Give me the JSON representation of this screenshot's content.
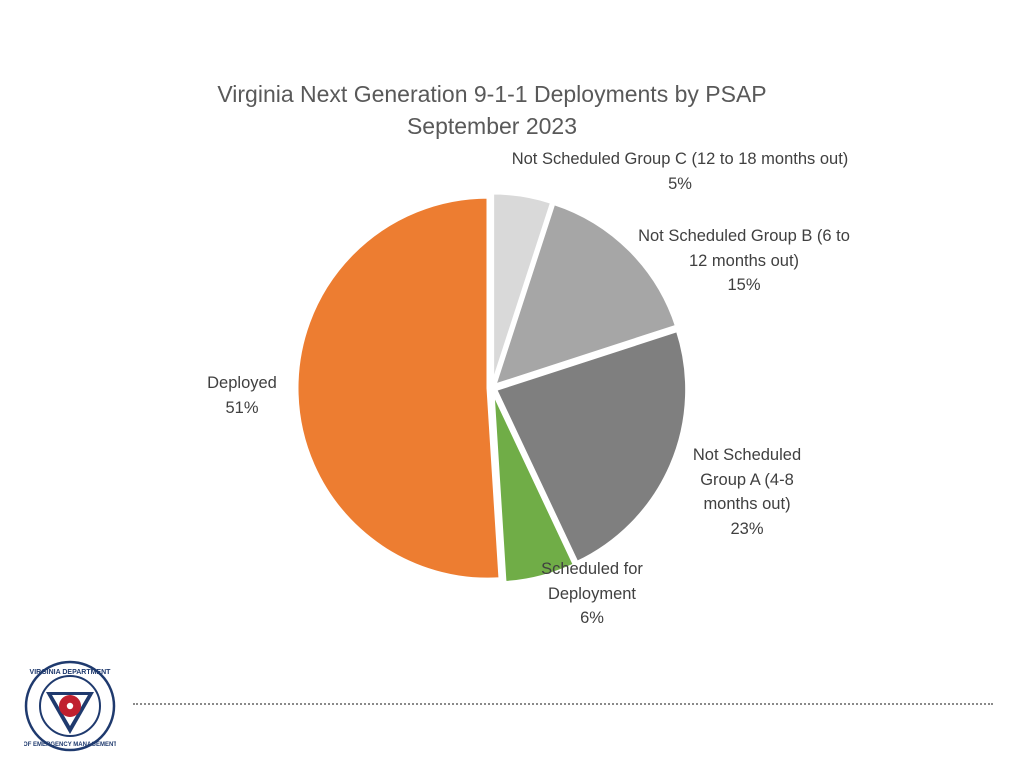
{
  "chart_data": {
    "type": "pie",
    "title": "Virginia Next Generation 9-1-1 Deployments by PSAP",
    "subtitle": "September 2023",
    "slices": [
      {
        "key": "c",
        "label_lines": [
          "Not Scheduled Group C (12 to 18 months out)"
        ],
        "percent_label": "5%",
        "value": 5,
        "color": "#d9d9d9"
      },
      {
        "key": "b",
        "label_lines": [
          "Not Scheduled Group B (6 to",
          "12 months out)"
        ],
        "percent_label": "15%",
        "value": 15,
        "color": "#a6a6a6"
      },
      {
        "key": "a",
        "label_lines": [
          "Not Scheduled",
          "Group A (4-8",
          "months out)"
        ],
        "percent_label": "23%",
        "value": 23,
        "color": "#7f7f7f"
      },
      {
        "key": "s",
        "label_lines": [
          "Scheduled for",
          "Deployment"
        ],
        "percent_label": "6%",
        "value": 6,
        "color": "#70ad47"
      },
      {
        "key": "d",
        "label_lines": [
          "Deployed"
        ],
        "percent_label": "51%",
        "value": 51,
        "color": "#ed7d31"
      }
    ],
    "legend": "none",
    "labels": "outside-with-percent"
  },
  "footer": {
    "logo_text": "VIRGINIA DEPARTMENT OF EMERGENCY MANAGEMENT",
    "logo_colors": {
      "ring": "#1f3a6e",
      "accent": "#c0202f"
    }
  }
}
